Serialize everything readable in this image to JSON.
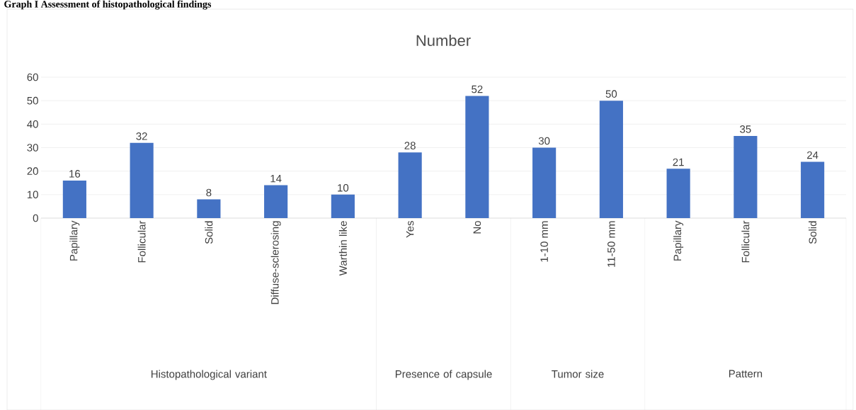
{
  "chart_data": {
    "type": "bar",
    "title": "Graph I Assessment of histopathological findings",
    "subtitle": "Number",
    "categories": [
      "Papillary",
      "Follicular",
      "Solid",
      "Diffuse-sclerosing",
      "Warthin like",
      "Yes",
      "No",
      "1-10 mm",
      "11-50 mm",
      "Papillary",
      "Follicular",
      "Solid"
    ],
    "values": [
      16,
      32,
      8,
      14,
      10,
      28,
      52,
      30,
      50,
      21,
      35,
      24
    ],
    "color": "#4472c4",
    "ylim": [
      0,
      60
    ],
    "yticks": [
      0,
      10,
      20,
      30,
      40,
      50,
      60
    ],
    "grid": "y",
    "data_labels": true,
    "annotations": [
      "Histopathological variant",
      "Presence of capsule",
      "Tumor size",
      "Pattern"
    ]
  }
}
